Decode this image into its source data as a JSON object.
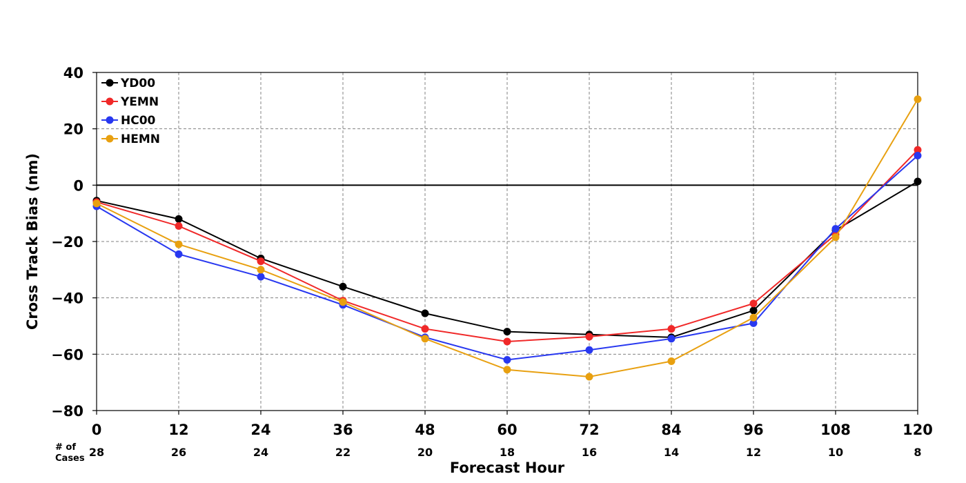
{
  "chart_data": {
    "type": "line",
    "title": "",
    "xlabel": "Forecast Hour",
    "ylabel": "Cross Track Bias (nm)",
    "x": [
      0,
      12,
      24,
      36,
      48,
      60,
      72,
      84,
      96,
      108,
      120
    ],
    "xlim": [
      0,
      120
    ],
    "ylim": [
      -80,
      40
    ],
    "xticks": [
      0,
      12,
      24,
      36,
      48,
      60,
      72,
      84,
      96,
      108,
      120
    ],
    "yticks": [
      40,
      20,
      0,
      -20,
      -40,
      -60,
      -80
    ],
    "grid": true,
    "legend": "top-left",
    "cases_label": [
      "# of",
      "Cases"
    ],
    "cases": [
      28,
      26,
      24,
      22,
      20,
      18,
      16,
      14,
      12,
      10,
      8
    ],
    "series": [
      {
        "name": "YD00",
        "color": "#000000",
        "values": [
          -5.5,
          -12,
          -26,
          -36,
          -45.5,
          -52,
          -53,
          -54,
          -44.5,
          -16,
          1.3
        ]
      },
      {
        "name": "YEMN",
        "color": "#f02828",
        "values": [
          -6,
          -14.5,
          -27,
          -41,
          -51,
          -55.5,
          -53.8,
          -51,
          -42,
          -17.5,
          12.5
        ]
      },
      {
        "name": "HC00",
        "color": "#2838f0",
        "values": [
          -7.5,
          -24.5,
          -32.5,
          -42.5,
          -54,
          -62,
          -58.5,
          -54.5,
          -49,
          -15.5,
          10.5
        ]
      },
      {
        "name": "HEMN",
        "color": "#e8a010",
        "values": [
          -6.5,
          -21,
          -30,
          -41.5,
          -54.5,
          -65.5,
          -68,
          -62.5,
          -47,
          -18.5,
          30.5
        ]
      }
    ]
  }
}
